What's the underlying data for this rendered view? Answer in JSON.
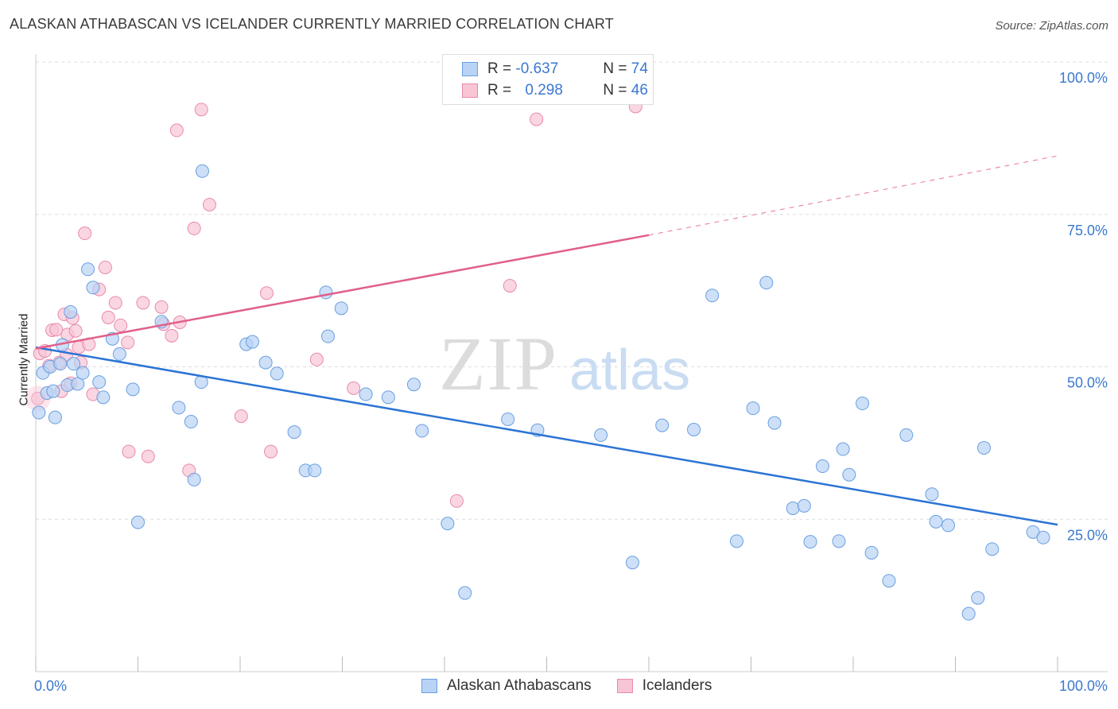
{
  "title": "ALASKAN ATHABASCAN VS ICELANDER CURRENTLY MARRIED CORRELATION CHART",
  "source": "Source: ZipAtlas.com",
  "watermark": {
    "zip": "ZIP",
    "atlas": "atlas"
  },
  "legend_top": {
    "rows": [
      {
        "r_label": "R =",
        "r_value": "-0.637",
        "n_label": "N =",
        "n_value": "74"
      },
      {
        "r_label": "R =",
        "r_value": "0.298",
        "n_label": "N =",
        "n_value": "46"
      }
    ]
  },
  "legend_bottom": [
    "Alaskan Athabascans",
    "Icelanders"
  ],
  "colors": {
    "blue_fill": "#b8d3f5",
    "blue_stroke": "#6a9fe0",
    "blue_line": "#2b74d4",
    "pink_fill": "#f8c5d5",
    "pink_stroke": "#e98aab",
    "pink_line": "#e0608a",
    "grid": "#dddddd",
    "axis_text": "#3a78d0"
  },
  "chart_data": {
    "type": "scatter",
    "title": "ALASKAN ATHABASCAN VS ICELANDER CURRENTLY MARRIED CORRELATION CHART",
    "xlabel": "",
    "ylabel": "Currently Married",
    "xlim": [
      0,
      100
    ],
    "ylim": [
      0,
      100
    ],
    "x_tick_labels": [
      "0.0%",
      "100.0%"
    ],
    "y_tick_labels": [
      "100.0%",
      "75.0%",
      "50.0%",
      "25.0%"
    ],
    "y_ticks": [
      100,
      75,
      50,
      25
    ],
    "grid": true,
    "legend": "bottom",
    "series": [
      {
        "name": "Alaskan Athabascans",
        "trend": {
          "x": [
            0,
            100
          ],
          "y": [
            53.2,
            24.1
          ]
        },
        "points": [
          [
            0.3,
            42.5
          ],
          [
            0.7,
            49.0
          ],
          [
            1.1,
            45.7
          ],
          [
            1.4,
            50.0
          ],
          [
            1.7,
            46.0
          ],
          [
            1.9,
            41.7
          ],
          [
            2.4,
            50.5
          ],
          [
            2.6,
            53.6
          ],
          [
            3.1,
            47.0
          ],
          [
            3.4,
            59.0
          ],
          [
            3.7,
            50.5
          ],
          [
            4.1,
            47.2
          ],
          [
            4.6,
            49.0
          ],
          [
            5.1,
            66.0
          ],
          [
            5.6,
            63.0
          ],
          [
            6.2,
            47.5
          ],
          [
            6.6,
            45.0
          ],
          [
            7.5,
            54.6
          ],
          [
            8.2,
            52.1
          ],
          [
            9.5,
            46.3
          ],
          [
            12.3,
            57.4
          ],
          [
            14.0,
            43.3
          ],
          [
            15.2,
            41.0
          ],
          [
            16.2,
            47.5
          ],
          [
            16.3,
            82.1
          ],
          [
            20.6,
            53.7
          ],
          [
            21.2,
            54.1
          ],
          [
            22.5,
            50.7
          ],
          [
            23.6,
            48.9
          ],
          [
            25.3,
            39.3
          ],
          [
            26.4,
            33.0
          ],
          [
            27.3,
            33.0
          ],
          [
            28.4,
            62.2
          ],
          [
            28.6,
            55.0
          ],
          [
            29.9,
            59.6
          ],
          [
            32.3,
            45.5
          ],
          [
            37.0,
            47.1
          ],
          [
            37.8,
            39.5
          ],
          [
            40.3,
            24.3
          ],
          [
            42.0,
            12.9
          ],
          [
            46.2,
            41.4
          ],
          [
            49.1,
            39.6
          ],
          [
            55.3,
            38.8
          ],
          [
            58.4,
            17.9
          ],
          [
            61.3,
            40.4
          ],
          [
            64.4,
            39.7
          ],
          [
            66.2,
            61.7
          ],
          [
            68.6,
            21.4
          ],
          [
            70.2,
            43.2
          ],
          [
            71.5,
            63.8
          ],
          [
            72.3,
            40.8
          ],
          [
            74.1,
            26.8
          ],
          [
            75.2,
            27.2
          ],
          [
            75.8,
            21.3
          ],
          [
            77.0,
            33.7
          ],
          [
            78.6,
            21.4
          ],
          [
            79.0,
            36.5
          ],
          [
            79.6,
            32.3
          ],
          [
            80.9,
            44.0
          ],
          [
            81.8,
            19.5
          ],
          [
            83.5,
            14.9
          ],
          [
            85.2,
            38.8
          ],
          [
            87.7,
            29.1
          ],
          [
            88.1,
            24.6
          ],
          [
            89.3,
            24.0
          ],
          [
            91.3,
            9.5
          ],
          [
            92.2,
            12.1
          ],
          [
            92.8,
            36.7
          ],
          [
            93.6,
            20.1
          ],
          [
            97.6,
            22.9
          ],
          [
            98.6,
            22.0
          ],
          [
            10.0,
            24.5
          ],
          [
            15.5,
            31.5
          ],
          [
            34.5,
            45.0
          ]
        ]
      },
      {
        "name": "Icelanders",
        "trend": {
          "x": [
            0,
            60
          ],
          "y": [
            53.0,
            71.6
          ]
        },
        "trend_extension": {
          "x": [
            60,
            100
          ],
          "y": [
            71.6,
            84.6
          ]
        },
        "points": [
          [
            0.2,
            44.8
          ],
          [
            0.4,
            52.2
          ],
          [
            0.9,
            52.6
          ],
          [
            1.3,
            50.2
          ],
          [
            1.6,
            56.0
          ],
          [
            2.0,
            56.1
          ],
          [
            2.3,
            50.7
          ],
          [
            2.8,
            58.6
          ],
          [
            3.1,
            55.3
          ],
          [
            3.4,
            47.3
          ],
          [
            3.6,
            58.0
          ],
          [
            3.9,
            55.9
          ],
          [
            4.2,
            53.2
          ],
          [
            4.4,
            50.7
          ],
          [
            4.8,
            71.9
          ],
          [
            5.2,
            53.7
          ],
          [
            5.6,
            45.5
          ],
          [
            6.2,
            62.7
          ],
          [
            6.8,
            66.3
          ],
          [
            7.1,
            58.1
          ],
          [
            7.8,
            60.5
          ],
          [
            8.3,
            56.8
          ],
          [
            9.1,
            36.1
          ],
          [
            10.5,
            60.5
          ],
          [
            11.0,
            35.3
          ],
          [
            12.3,
            59.8
          ],
          [
            13.3,
            55.1
          ],
          [
            13.8,
            88.8
          ],
          [
            14.1,
            57.3
          ],
          [
            15.0,
            33.0
          ],
          [
            15.5,
            72.7
          ],
          [
            16.2,
            92.2
          ],
          [
            17.0,
            76.6
          ],
          [
            20.1,
            41.9
          ],
          [
            22.6,
            62.1
          ],
          [
            23.0,
            36.1
          ],
          [
            27.5,
            51.2
          ],
          [
            31.1,
            46.5
          ],
          [
            41.2,
            28.0
          ],
          [
            46.4,
            63.3
          ],
          [
            49.0,
            90.6
          ],
          [
            58.7,
            92.7
          ],
          [
            2.5,
            46.0
          ],
          [
            3.0,
            52.0
          ],
          [
            9.0,
            54.0
          ],
          [
            12.5,
            57.0
          ]
        ]
      }
    ]
  }
}
